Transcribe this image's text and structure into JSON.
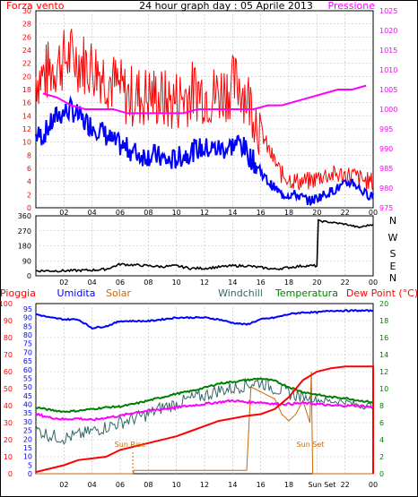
{
  "chart_data": [
    {
      "type": "line",
      "title": "24 hour graph day : 05 Aprile 2013",
      "left_axis_title": "Forza vento",
      "right_axis_title": "Pressione",
      "left_ticks": [
        "0",
        "2",
        "4",
        "6",
        "8",
        "10",
        "12",
        "14",
        "16",
        "18",
        "20",
        "22",
        "24",
        "26",
        "28",
        "30"
      ],
      "right_ticks": [
        "975",
        "980",
        "985",
        "990",
        "995",
        "1000",
        "1005",
        "1010",
        "1015",
        "1020",
        "1025"
      ],
      "x_ticks": [
        "02",
        "04",
        "06",
        "08",
        "10",
        "12",
        "14",
        "16",
        "18",
        "20",
        "22",
        "00"
      ],
      "ylim_left": [
        0,
        30
      ],
      "ylim_right": [
        975,
        1025
      ],
      "colors": {
        "gust": "#ff0000",
        "wind": "#0000ff",
        "pressure": "#ff00ff",
        "left_axis": "#ff0000",
        "right_axis": "#ff00ff"
      },
      "x_hours": [
        0.5,
        1.5,
        2.5,
        3.5,
        4.5,
        5.5,
        6.5,
        7.5,
        8.5,
        9.5,
        10.5,
        11.5,
        12.5,
        13.5,
        14.5,
        15.5,
        16.5,
        17.5,
        18.5,
        19.5,
        20.5,
        21.5,
        22.5,
        23.5
      ],
      "series": [
        {
          "values": [
            20,
            22,
            23,
            22,
            21,
            19,
            17,
            17,
            17,
            16,
            17,
            18,
            17,
            18,
            19,
            15,
            9,
            5,
            4,
            4,
            5,
            5,
            5,
            4
          ]
        },
        {
          "values": [
            11,
            14,
            15,
            13,
            12,
            10,
            9,
            8,
            8,
            7,
            8,
            9,
            9,
            9,
            10,
            7,
            4,
            2,
            2,
            1,
            2,
            3,
            4,
            2
          ]
        },
        {
          "values": [
            1004,
            1003,
            1001,
            1000,
            1000,
            1000,
            999,
            999,
            999,
            999,
            999,
            1000,
            1000,
            1000,
            1000,
            1000,
            1001,
            1001,
            1002,
            1003,
            1004,
            1005,
            1005,
            1006
          ]
        }
      ]
    },
    {
      "type": "line",
      "left_ticks": [
        "0",
        "90",
        "180",
        "270",
        "360"
      ],
      "right_labels": [
        "N",
        "W",
        "S",
        "E",
        "N"
      ],
      "ylim": [
        0,
        360
      ],
      "x_ticks": [
        "02",
        "04",
        "06",
        "08",
        "10",
        "12",
        "14",
        "16",
        "18",
        "20",
        "22",
        "00"
      ],
      "colors": {
        "direction": "#000000",
        "left_axis": "#000000"
      },
      "x_hours": [
        0,
        2,
        4,
        5,
        6,
        8,
        9,
        10,
        11,
        12,
        14,
        15,
        16,
        17,
        19,
        20,
        20.1,
        22,
        23,
        24
      ],
      "series": [
        {
          "values": [
            30,
            30,
            34,
            40,
            70,
            60,
            55,
            60,
            45,
            45,
            60,
            60,
            50,
            40,
            60,
            60,
            330,
            310,
            290,
            310
          ]
        }
      ]
    },
    {
      "type": "line",
      "legend": [
        "Pioggia",
        "Umidita",
        "Solar",
        "Windchill",
        "Temperatura",
        "Dew Point (°C)"
      ],
      "left_ticks_rain": [
        "0",
        "10",
        "20",
        "30",
        "40",
        "50",
        "60",
        "70",
        "80",
        "90",
        "100"
      ],
      "left_ticks_hum": [
        "0",
        "5",
        "10",
        "15",
        "20",
        "25",
        "30",
        "35",
        "40",
        "45",
        "50",
        "55",
        "60",
        "65",
        "70",
        "75",
        "80",
        "85",
        "90",
        "95"
      ],
      "right_ticks": [
        "0",
        "2",
        "4",
        "6",
        "8",
        "10",
        "12",
        "14",
        "16",
        "18",
        "20"
      ],
      "x_ticks": [
        "02",
        "04",
        "06",
        "08",
        "10",
        "12",
        "14",
        "16",
        "18",
        "20",
        "22",
        "00"
      ],
      "sun_rise": "Sun Rise",
      "sun_set": "Sun Set",
      "sun_set_tick": "Sun Set",
      "ylim_rain": [
        0,
        100
      ],
      "ylim_hum": [
        0,
        95
      ],
      "ylim_temp": [
        0,
        20
      ],
      "colors": {
        "rain": "#ff0000",
        "humidity": "#0000ff",
        "solar": "#cc6600",
        "windchill": "#336666",
        "temperature": "#008000",
        "dewpoint": "#ff00ff",
        "rain_axis": "#ff0000",
        "hum_axis": "#0000ff",
        "temp_axis": "#008000"
      },
      "x_hours": [
        0,
        1,
        2,
        3,
        4,
        5,
        6,
        7,
        8,
        9,
        10,
        11,
        12,
        13,
        14,
        15,
        16,
        17,
        18,
        19,
        20,
        21,
        22,
        23,
        24
      ],
      "rain_x": [
        0,
        2,
        3,
        5,
        6,
        8,
        10,
        11,
        12,
        13,
        15,
        16,
        17,
        18,
        19,
        20,
        21,
        22,
        23,
        24
      ],
      "rain_values": [
        1,
        5,
        8,
        10,
        14,
        18,
        22,
        25,
        28,
        31,
        34,
        35,
        38,
        45,
        55,
        60,
        62,
        63,
        63,
        63
      ],
      "humidity_values": [
        92,
        90,
        89,
        89,
        84,
        85,
        88,
        88,
        88,
        89,
        90,
        90,
        90,
        89,
        87,
        86,
        89,
        90,
        92,
        93,
        93,
        94,
        94,
        94,
        94
      ],
      "temperature_values": [
        7.8,
        7.5,
        7.3,
        7.4,
        7.6,
        7.8,
        7.9,
        8.2,
        8.6,
        9.0,
        9.4,
        9.7,
        10.1,
        10.6,
        10.8,
        11.0,
        11.2,
        10.9,
        10.2,
        9.6,
        9.3,
        9.0,
        8.9,
        8.6,
        8.4
      ],
      "windchill_values": [
        5.2,
        4.5,
        4.2,
        4.5,
        5.0,
        5.5,
        6.0,
        6.5,
        7.0,
        7.8,
        8.2,
        8.8,
        9.2,
        9.8,
        10.0,
        10.5,
        10.8,
        10.0,
        9.5,
        9.0,
        8.7,
        8.5,
        8.5,
        8.0,
        8.0
      ],
      "dewpoint_values": [
        7.0,
        6.6,
        6.4,
        6.5,
        6.3,
        6.6,
        6.8,
        7.2,
        7.4,
        7.6,
        7.8,
        8.0,
        8.2,
        8.4,
        8.6,
        8.4,
        8.4,
        8.2,
        8.2,
        8.3,
        8.2,
        8.0,
        8.0,
        8.0,
        7.8
      ],
      "solar_x": [
        0,
        6.9,
        7.0,
        14.9,
        15.0,
        15.3,
        16.5,
        17.0,
        17.5,
        18.0,
        18.5,
        19.0,
        19.5,
        19.6,
        19.7,
        24
      ],
      "solar_values": [
        0,
        0,
        2,
        2,
        2,
        51,
        46,
        44,
        35,
        31,
        35,
        43,
        30,
        60,
        0,
        0
      ]
    }
  ]
}
